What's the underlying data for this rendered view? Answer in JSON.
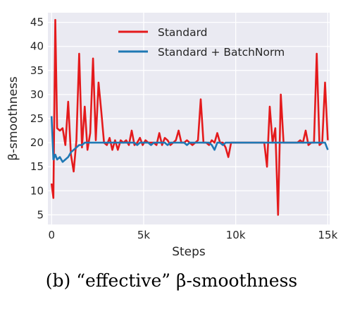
{
  "caption": "(b) “effective” β-smoothness",
  "chart_data": {
    "type": "line",
    "xlabel": "Steps",
    "ylabel": "β-smoothness",
    "xlim": [
      -200,
      15100
    ],
    "ylim": [
      3,
      47
    ],
    "xticks": [
      0,
      5000,
      10000,
      15000
    ],
    "xtick_labels": [
      "0",
      "5k",
      "10k",
      "15k"
    ],
    "yticks": [
      5,
      10,
      15,
      20,
      25,
      30,
      35,
      40,
      45
    ],
    "ytick_labels": [
      "5",
      "10",
      "15",
      "20",
      "25",
      "30",
      "35",
      "40",
      "45"
    ],
    "grid": true,
    "legend_position": "top-center",
    "series": [
      {
        "name": "Standard",
        "color": "#e41a1c",
        "x": [
          0,
          100,
          200,
          300,
          450,
          600,
          750,
          900,
          1050,
          1200,
          1350,
          1500,
          1650,
          1800,
          1950,
          2100,
          2250,
          2400,
          2550,
          2700,
          2850,
          3000,
          3150,
          3300,
          3450,
          3600,
          3750,
          3900,
          4050,
          4200,
          4350,
          4500,
          4650,
          4800,
          4950,
          5100,
          5250,
          5400,
          5550,
          5700,
          5850,
          6000,
          6150,
          6300,
          6450,
          6600,
          6750,
          6900,
          7050,
          7200,
          7350,
          7500,
          7650,
          7800,
          7950,
          8100,
          8250,
          8400,
          8550,
          8700,
          8850,
          9000,
          9150,
          9300,
          9450,
          9600,
          9750,
          9900,
          10050,
          10200,
          10350,
          10500,
          10650,
          10800,
          10950,
          11100,
          11250,
          11400,
          11550,
          11700,
          11850,
          12000,
          12150,
          12300,
          12450,
          12600,
          12750,
          12900,
          13050,
          13200,
          13350,
          13500,
          13650,
          13800,
          13950,
          14100,
          14250,
          14400,
          14550,
          14700,
          14850,
          15000
        ],
        "values": [
          11.5,
          8.5,
          45.5,
          23,
          22.5,
          23,
          19.5,
          28.5,
          17.5,
          14,
          20.5,
          38.5,
          19,
          27.5,
          18.5,
          22,
          37.5,
          20.5,
          32.5,
          26.5,
          20,
          19.5,
          21,
          18.5,
          20.5,
          18.5,
          20.5,
          20,
          20.5,
          19.5,
          22.5,
          19.5,
          20,
          21,
          19.5,
          20.5,
          20,
          20,
          20,
          19.5,
          22,
          19.5,
          21,
          20.5,
          19.5,
          20,
          20.5,
          22.5,
          20,
          20,
          20.5,
          20,
          19.5,
          20,
          20.5,
          29,
          20,
          20,
          19.5,
          20.5,
          20,
          22,
          20,
          20,
          19,
          17,
          20,
          20,
          20,
          20,
          20,
          20,
          20,
          20,
          20,
          20,
          20,
          20,
          20,
          15,
          27.5,
          20,
          23,
          5,
          30,
          20,
          20,
          20,
          20,
          20,
          20,
          20.5,
          20,
          22.5,
          19.5,
          20,
          20,
          38.5,
          19.5,
          20,
          32.5,
          20.5
        ]
      },
      {
        "name": "Standard + BatchNorm",
        "color": "#1f78b4",
        "x": [
          0,
          100,
          200,
          300,
          450,
          600,
          750,
          900,
          1050,
          1200,
          1350,
          1500,
          1650,
          1800,
          1950,
          2100,
          2250,
          2400,
          2550,
          2700,
          2850,
          3000,
          3150,
          3300,
          3450,
          3600,
          3750,
          3900,
          4050,
          4200,
          4350,
          4500,
          4650,
          4800,
          4950,
          5100,
          5250,
          5400,
          5550,
          5700,
          5850,
          6000,
          6150,
          6300,
          6450,
          6600,
          6750,
          6900,
          7050,
          7200,
          7350,
          7500,
          7650,
          7800,
          7950,
          8100,
          8250,
          8400,
          8550,
          8700,
          8850,
          9000,
          9150,
          9300,
          9450,
          9600,
          9750,
          9900,
          10050,
          10200,
          10350,
          10500,
          10650,
          10800,
          10950,
          11100,
          11250,
          11400,
          11550,
          11700,
          11850,
          12000,
          12150,
          12300,
          12450,
          12600,
          12750,
          12900,
          13050,
          13200,
          13350,
          13500,
          13650,
          13800,
          13950,
          14100,
          14250,
          14400,
          14550,
          14700,
          14850,
          15000
        ],
        "values": [
          25.5,
          16.5,
          17.5,
          16.5,
          17,
          16,
          16.5,
          17,
          18,
          18.5,
          19,
          19.5,
          19.5,
          20,
          20,
          20,
          20,
          20,
          20,
          20,
          20,
          20,
          20,
          20,
          20,
          20,
          20,
          20,
          20,
          20,
          20,
          20,
          19.5,
          20,
          20,
          20,
          20,
          19.5,
          20,
          20,
          20,
          20,
          20,
          19.5,
          20,
          20,
          20,
          20,
          20,
          20,
          19.5,
          20,
          20,
          20,
          20,
          20,
          20,
          20,
          20,
          19.5,
          18.5,
          20,
          20,
          19.5,
          20,
          20,
          20,
          20,
          20,
          20,
          20,
          20,
          20,
          20,
          20,
          20,
          20,
          20,
          20,
          20,
          20,
          20,
          20,
          20,
          20,
          20,
          20,
          20,
          20,
          20,
          20,
          20,
          20,
          20,
          20,
          20,
          20,
          20,
          20,
          20,
          20,
          18.5
        ]
      }
    ]
  }
}
